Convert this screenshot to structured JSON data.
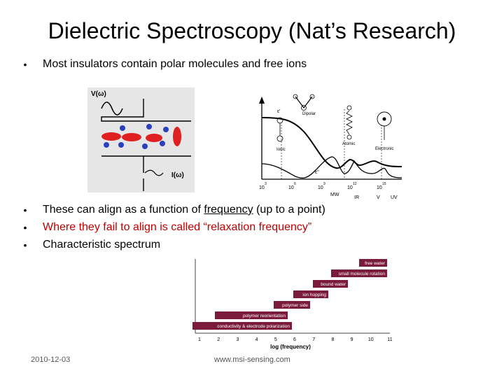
{
  "slide": {
    "title": "Dielectric Spectroscopy (Nat’s Research)",
    "bullet_1": "Most insulators contain polar molecules and free ions",
    "bullet_2_pre": "These can align as a function of ",
    "bullet_2_link": "frequency",
    "bullet_2_post": " (up to a point)",
    "bullet_3": "Where they fail to align is called “relaxation frequency”",
    "bullet_4": "Characteristic spectrum",
    "bullet_marker": "•"
  },
  "capacitor_figure": {
    "voltage_label": "V(ω)",
    "current_label": "I(ω)",
    "molecule_color": "#e02020",
    "ion_color": "#2b3fbf"
  },
  "spectrum_figure": {
    "epsilon_prime": "ε'",
    "epsilon_double_prime": "ε''",
    "dipolar_label": "Dipolar",
    "ionic_label": "Ionic",
    "atomic_label": "Atomic",
    "electronic_label": "Electronic",
    "x_exponents": [
      "3",
      "6",
      "9",
      "12",
      "15"
    ],
    "x_base": "10",
    "band_labels": [
      "MW",
      "IR",
      "V",
      "UV"
    ]
  },
  "relaxation_chart": {
    "bars": [
      "free water",
      "small molecule rotation",
      "bound water",
      "ion hopping",
      "polymer side",
      "polymer reorientation",
      "conductivity & electrode polarization"
    ],
    "x_ticks": [
      "1",
      "2",
      "3",
      "4",
      "5",
      "6",
      "7",
      "8",
      "9",
      "10",
      "11"
    ],
    "xlabel": "log (frequency)",
    "bar_fill": "#7a1b3c"
  },
  "footer": {
    "date": "2010-12-03",
    "website": "www.msi-sensing.com"
  }
}
